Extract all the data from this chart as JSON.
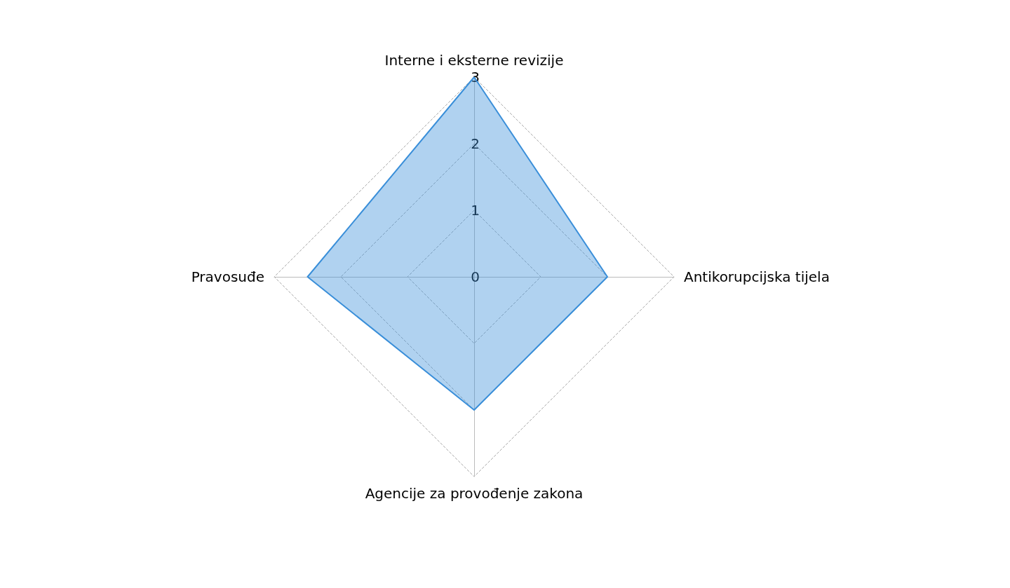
{
  "chart_data": {
    "type": "radar",
    "categories": [
      "Interne i eksterne revizije",
      "Antikorupcijska tijela",
      "Agencije za provođenje zakona",
      "Pravosuđe"
    ],
    "series": [
      {
        "color": "#3a8fd9",
        "values": [
          3,
          2,
          2,
          2.5
        ]
      }
    ],
    "ylim": [
      0,
      3
    ],
    "yticks": [
      0,
      1,
      2,
      3
    ],
    "grid": true,
    "legend": false,
    "marker": "none",
    "line_style": "solid"
  }
}
